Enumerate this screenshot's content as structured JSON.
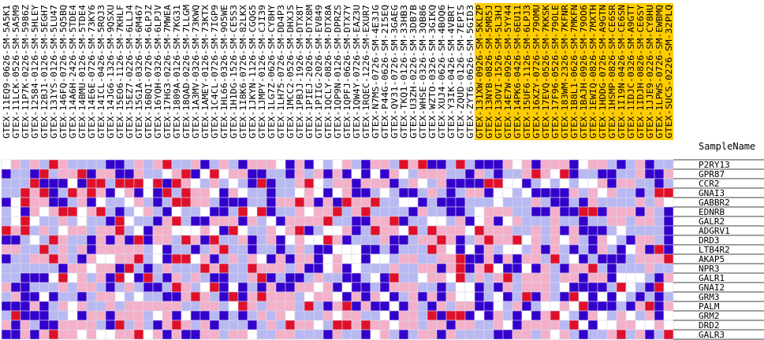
{
  "chart_data": {
    "type": "heatmap",
    "row_header": "SampleName",
    "columns": [
      "GTEX-11EQ9-0626-SM-5A5K1",
      "GTEX-11LCK-0526-SM-5A5M9",
      "GTEX-11P7K-0226-SM-5986Z",
      "GTEX-12584-0126-SM-5HLEY",
      "GTEX-12BJ1-0126-SM-5EGH7",
      "GTEX-131YS-0126-SM-5LU47",
      "GTEX-146FQ-0726-SM-5Q5BQ",
      "GTEX-14A6H-2426-SM-5TDE4",
      "GTEX-14BMU-0126-SM-5TDE4",
      "GTEX-14E6E-0726-SM-73KY6",
      "GTEX-14ICL-0426-SM-5RQJ3",
      "GTEX-14JG6-1326-SM-9QSXU",
      "GTEX-15EO6-1126-SM-7KHLF",
      "GTEX-15EZ7-0226-SM-6LLJ4",
      "GTEX-15G1A-0326-SM-6M467",
      "GTEX-16BQI-0726-SM-6LPJZ",
      "GTEX-16YQH-0326-SM-6LPJV",
      "GTEX-17HG3-0226-SM-7MWEA",
      "GTEX-1809A-0126-SM-7KG31",
      "GTEX-18QAD-0226-SM-7LLGM",
      "GTEX-1A3MV-0326-SM-73KWQ",
      "GTEX-1AMEY-0126-SM-73KTX",
      "GTEX-1C4CL-0726-SM-7IGP9",
      "GTEX-1HL66-0326-SM-9O5WE",
      "GTEX-1H1DG-1526-SM-CE5S3",
      "GTEX-1I8K6-0726-SM-82LKX",
      "GTEX-1JKYN-1126-SM-CGQG5",
      "GTEX-1JMPY-0126-SM-CJI39",
      "GTEX-1LG7Z-0626-SM-CY8HY",
      "GTEX-1LH75-0726-SM-DD4P3",
      "GTEX-1MCC2-0526-SM-DHXJS",
      "GTEX-1PBJJ-1926-SM-DTX8T",
      "GTEX-1PIEJ-2026-SM-DTX8M",
      "GTEX-1PIIG-2026-SM-EV849",
      "GTEX-1QCLY-0826-SM-DTX8A",
      "GTEX-1QP9N-0126-SM-DPRZS",
      "GTEX-1QPFJ-0626-SM-DTX7Y",
      "GTEX-1QW4Y-0726-SM-EAZ3U",
      "GTEX-1RQEC-1226-SM-EXUR7",
      "GTEX-N7MS-0726-SM-4E3JG",
      "GTEX-P44G-0626-SM-2I5EQ",
      "GTEX-QV31-0726-SM-3GAEG",
      "GTEX-TKQ1-0126-SM-33HB3",
      "GTEX-U3ZH-0226-SM-3DB7B",
      "GTEX-WHSE-0326-SM-3QB86",
      "GTEX-WZTO-0326-SM-3GIKQ",
      "GTEX-XUJ4-0626-SM-4BOQ6",
      "GTEX-Y3IK-0426-SM-4VBRT",
      "GTEX-ZQUD-0126-SM-7EPIS",
      "GTEX-ZYT6-0626-SM-5GID3",
      "GTEX-131XW-0926-SM-5KLZP",
      "GTEX-13NYB-0826-SM-5MR5J",
      "GTEX-13OVI-1526-SM-5L3HJ",
      "GTEX-14E7W-0926-SM-5YY44",
      "GTEX-14PK6-0426-SM-6EU11",
      "GTEX-15UF6-1126-SM-6LPJ3",
      "GTEX-16XZY-0726-SM-79OMU",
      "GTEX-17EVQ-0526-SM-7KKSK",
      "GTEX-17F96-0526-SM-79OLE",
      "GTEX-183WM-2326-SM-7KFNR",
      "GTEX-1B8L1-0626-SM-7MKFN",
      "GTEX-1BAJH-0926-SM-79OO6",
      "GTEX-1EWIQ-0826-SM-7MXTH",
      "GTEX-1HDDG-0726-SM-A9GTN",
      "GTEX-1HSMP-0826-SM-CE6SR",
      "GTEX-1I19N-0426-SM-CE6SN",
      "GTEX-1IDJC-0326-SM-A9GTT",
      "GTEX-1IDJH-0826-SM-CE6SY",
      "GTEX-1JJE9-0226-SM-CY8HU",
      "GTEX-1LPWS-0726-SM-EWBMQ",
      "GTEX-SUCS-0226-SM-32PLQ"
    ],
    "highlight_column_start": 50,
    "highlight_color": "#ffcc00",
    "rows": [
      "P2RY13",
      "GPR87",
      "CCR2",
      "GNAI3",
      "GABBR2",
      "EDNRB",
      "GALR2",
      "ADGRV1",
      "DRD3",
      "LTB4R2",
      "AKAP5",
      "NPR3",
      "GALR1",
      "GNAI2",
      "GRM3",
      "PALM",
      "GRM2",
      "DRD2",
      "GALR3"
    ],
    "color_scale": {
      "low": "#3300cc",
      "mid_low": "#b8b8f2",
      "mid": "#ffffff",
      "mid_high": "#f4b0c8",
      "high": "#e0102a"
    },
    "legend": "none",
    "grid": true
  }
}
